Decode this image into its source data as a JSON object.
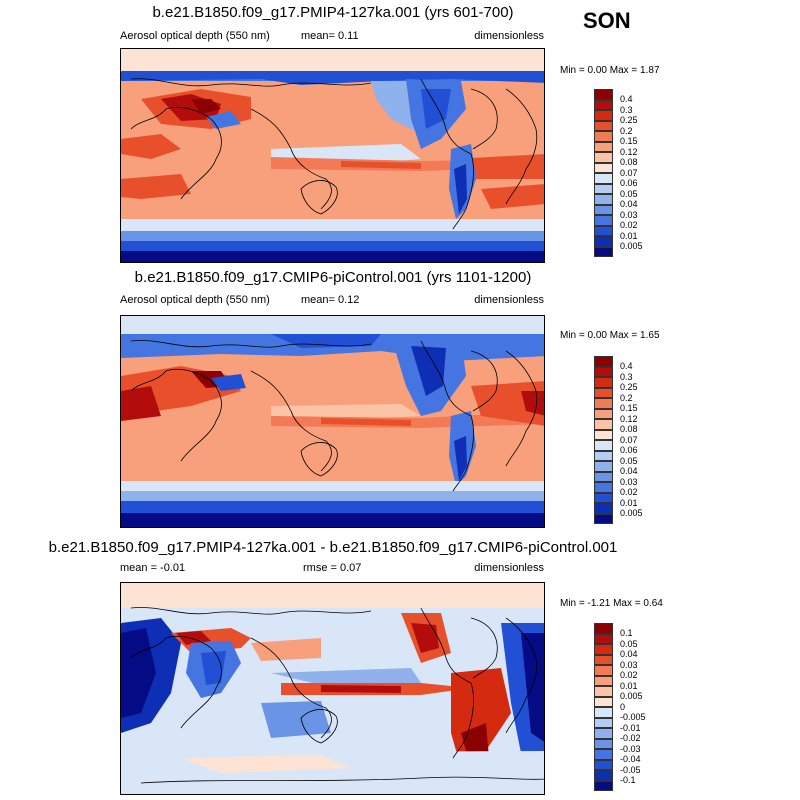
{
  "season": "SON",
  "panels": [
    {
      "title": "b.e21.B1850.f09_g17.PMIP4-127ka.001 (yrs 601-700)",
      "left_label": "Aerosol optical depth (550 nm)",
      "center_label": "mean=  0.11",
      "right_label": "dimensionless",
      "minmax": "Min =  0.00 Max =  1.87",
      "levels": [
        "0.4",
        "0.3",
        "0.25",
        "0.2",
        "0.15",
        "0.12",
        "0.08",
        "0.07",
        "0.06",
        "0.05",
        "0.04",
        "0.03",
        "0.02",
        "0.01",
        "0.005"
      ],
      "colors": [
        "#8b0000",
        "#b30c0c",
        "#d42a10",
        "#e8502c",
        "#f27a55",
        "#f8a07c",
        "#fbc4a6",
        "#fde3d3",
        "#d9e6f7",
        "#b5cdf2",
        "#8fb1ec",
        "#6a94e6",
        "#4575e0",
        "#2150d4",
        "#0e2fb5",
        "#050a85"
      ]
    },
    {
      "title": "b.e21.B1850.f09_g17.CMIP6-piControl.001 (yrs 1101-1200)",
      "left_label": "Aerosol optical depth (550 nm)",
      "center_label": "mean=  0.12",
      "right_label": "dimensionless",
      "minmax": "Min =  0.00 Max =  1.65",
      "levels": [
        "0.4",
        "0.3",
        "0.25",
        "0.2",
        "0.15",
        "0.12",
        "0.08",
        "0.07",
        "0.06",
        "0.05",
        "0.04",
        "0.03",
        "0.02",
        "0.01",
        "0.005"
      ],
      "colors": [
        "#8b0000",
        "#b30c0c",
        "#d42a10",
        "#e8502c",
        "#f27a55",
        "#f8a07c",
        "#fbc4a6",
        "#fde3d3",
        "#d9e6f7",
        "#b5cdf2",
        "#8fb1ec",
        "#6a94e6",
        "#4575e0",
        "#2150d4",
        "#0e2fb5",
        "#050a85"
      ]
    },
    {
      "title": "b.e21.B1850.f09_g17.PMIP4-127ka.001 - b.e21.B1850.f09_g17.CMIP6-piControl.001",
      "left_label": "mean =  -0.01",
      "center_label": "rmse =  0.07",
      "right_label": "dimensionless",
      "minmax": "Min =  -1.21 Max =  0.64",
      "levels": [
        "0.1",
        "0.05",
        "0.04",
        "0.03",
        "0.02",
        "0.01",
        "0.005",
        "0",
        "-0.005",
        "-0.01",
        "-0.02",
        "-0.03",
        "-0.04",
        "-0.05",
        "-0.1"
      ],
      "colors": [
        "#8b0000",
        "#b30c0c",
        "#d42a10",
        "#e8502c",
        "#f27a55",
        "#f8a07c",
        "#fbc4a6",
        "#fde3d3",
        "#d9e6f7",
        "#b5cdf2",
        "#8fb1ec",
        "#6a94e6",
        "#4575e0",
        "#2150d4",
        "#0e2fb5",
        "#050a85"
      ]
    }
  ],
  "chart_data": [
    {
      "type": "heatmap",
      "title": "b.e21.B1850.f09_g17.PMIP4-127ka.001 (yrs 601-700)",
      "variable": "Aerosol optical depth (550 nm)",
      "units": "dimensionless",
      "mean": 0.11,
      "min": 0.0,
      "max": 1.87,
      "contour_levels": [
        0.005,
        0.01,
        0.02,
        0.03,
        0.04,
        0.05,
        0.06,
        0.07,
        0.08,
        0.12,
        0.15,
        0.2,
        0.25,
        0.3,
        0.4
      ]
    },
    {
      "type": "heatmap",
      "title": "b.e21.B1850.f09_g17.CMIP6-piControl.001 (yrs 1101-1200)",
      "variable": "Aerosol optical depth (550 nm)",
      "units": "dimensionless",
      "mean": 0.12,
      "min": 0.0,
      "max": 1.65,
      "contour_levels": [
        0.005,
        0.01,
        0.02,
        0.03,
        0.04,
        0.05,
        0.06,
        0.07,
        0.08,
        0.12,
        0.15,
        0.2,
        0.25,
        0.3,
        0.4
      ]
    },
    {
      "type": "heatmap",
      "title": "b.e21.B1850.f09_g17.PMIP4-127ka.001 - b.e21.B1850.f09_g17.CMIP6-piControl.001",
      "units": "dimensionless",
      "mean": -0.01,
      "rmse": 0.07,
      "min": -1.21,
      "max": 0.64,
      "contour_levels": [
        -0.1,
        -0.05,
        -0.04,
        -0.03,
        -0.02,
        -0.01,
        -0.005,
        0,
        0.005,
        0.01,
        0.02,
        0.03,
        0.04,
        0.05,
        0.1
      ]
    }
  ]
}
